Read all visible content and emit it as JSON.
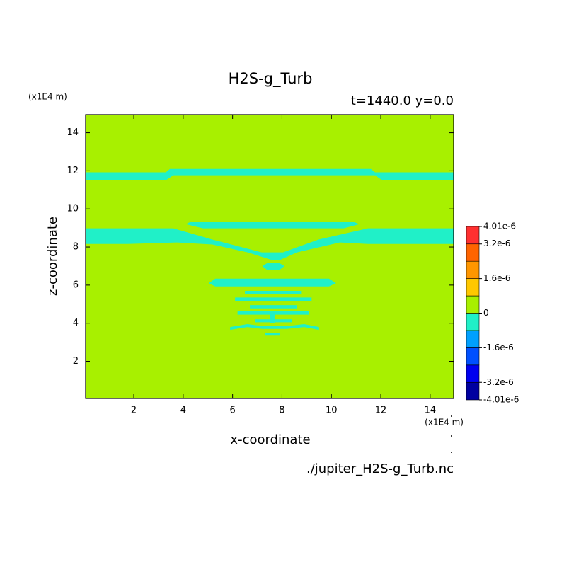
{
  "chart_data": {
    "type": "contour",
    "title": "H2S-g_Turb",
    "subtitle": "t=1440.0 y=0.0",
    "x_label": "x-coordinate",
    "y_label": "z-coordinate",
    "x_unit": "(x1E4 m)",
    "y_unit": "(x1E4 m)",
    "source": "./jupiter_H2S-g_Turb.nc",
    "xlim": [
      0.05,
      14.95
    ],
    "ylim": [
      0.05,
      14.95
    ],
    "xticks": [
      2,
      4,
      6,
      8,
      10,
      12,
      14
    ],
    "yticks": [
      2,
      4,
      6,
      8,
      10,
      12,
      14
    ],
    "colorbar": {
      "levels": [
        -4.01e-06,
        -3.2e-06,
        -2.4e-06,
        -1.6e-06,
        -8e-07,
        0,
        8e-07,
        1.6e-06,
        2.4e-06,
        3.2e-06,
        4.01e-06
      ],
      "colors": [
        "#0000a0",
        "#0000f0",
        "#0050ff",
        "#00a0ff",
        "#20f0c8",
        "#a8f000",
        "#ffc800",
        "#ff9600",
        "#ff6400",
        "#ff3030"
      ],
      "ticks": [
        {
          "value": 4.01e-06,
          "label": "4.01e-6"
        },
        {
          "value": 3.2e-06,
          "label": "3.2e-6"
        },
        {
          "value": 1.6e-06,
          "label": "1.6e-6"
        },
        0,
        {
          "value": -1.6e-06,
          "label": "-1.6e-6"
        },
        {
          "value": -3.2e-06,
          "label": "-3.2e-6"
        },
        {
          "value": -4.01e-06,
          "label": "-4.01e-6"
        }
      ]
    },
    "background_band": 5,
    "regions": [
      {
        "band": 4,
        "x": [
          0.05,
          3.3,
          3.46,
          11.6,
          11.77,
          14.95,
          14.95,
          12.05,
          11.77,
          3.6,
          3.3,
          0.05
        ],
        "z": [
          11.92,
          11.92,
          12.1,
          12.1,
          11.92,
          11.92,
          11.51,
          11.51,
          11.77,
          11.77,
          11.51,
          11.51
        ]
      },
      {
        "band": 4,
        "x": [
          4.1,
          4.3,
          10.9,
          11.14,
          10.5,
          4.8
        ],
        "z": [
          9.2,
          9.32,
          9.32,
          9.2,
          8.98,
          8.98
        ]
      },
      {
        "band": 4,
        "x": [
          0.05,
          3.6,
          5.18,
          7.18,
          8.04,
          9.48,
          11.48,
          14.95,
          14.95,
          11.48,
          10.34,
          8.61,
          7.9,
          7.61,
          6.61,
          5.18,
          3.74,
          1.74,
          0.05
        ],
        "z": [
          8.98,
          8.98,
          8.39,
          7.72,
          7.72,
          8.39,
          8.98,
          8.98,
          8.16,
          8.16,
          8.24,
          7.72,
          7.31,
          7.31,
          7.72,
          8.13,
          8.24,
          8.16,
          8.16
        ]
      },
      {
        "band": 4,
        "x": [
          7.2,
          7.4,
          7.9,
          8.1,
          7.9,
          7.4
        ],
        "z": [
          7.0,
          7.15,
          7.15,
          7.0,
          6.8,
          6.8
        ]
      },
      {
        "band": 4,
        "x": [
          5.3,
          9.9,
          10.19,
          9.9,
          5.3,
          5.03
        ],
        "z": [
          6.34,
          6.34,
          6.1,
          5.93,
          5.93,
          6.1
        ]
      },
      {
        "band": 4,
        "x": [
          6.5,
          8.8,
          8.8,
          6.5
        ],
        "z": [
          5.7,
          5.7,
          5.52,
          5.52
        ]
      },
      {
        "band": 4,
        "x": [
          6.1,
          9.2,
          9.2,
          6.1
        ],
        "z": [
          5.35,
          5.35,
          5.15,
          5.15
        ]
      },
      {
        "band": 4,
        "x": [
          6.7,
          8.6,
          8.6,
          6.7
        ],
        "z": [
          4.95,
          4.95,
          4.78,
          4.78
        ]
      },
      {
        "band": 4,
        "x": [
          6.2,
          9.1,
          9.1,
          6.2
        ],
        "z": [
          4.62,
          4.62,
          4.45,
          4.45
        ]
      },
      {
        "band": 4,
        "x": [
          7.5,
          7.7,
          7.7,
          7.5
        ],
        "z": [
          4.6,
          4.6,
          4.0,
          4.0
        ]
      },
      {
        "band": 4,
        "x": [
          6.9,
          8.4,
          8.4,
          6.9
        ],
        "z": [
          4.2,
          4.2,
          4.05,
          4.05
        ]
      },
      {
        "band": 4,
        "x": [
          5.9,
          6.6,
          7.2,
          8.2,
          8.9,
          9.5,
          9.5,
          8.9,
          8.2,
          7.2,
          6.6,
          5.9
        ],
        "z": [
          3.8,
          3.95,
          3.85,
          3.85,
          3.95,
          3.8,
          3.65,
          3.8,
          3.7,
          3.7,
          3.8,
          3.65
        ]
      },
      {
        "band": 4,
        "x": [
          7.3,
          7.9,
          7.9,
          7.3
        ],
        "z": [
          3.5,
          3.5,
          3.35,
          3.35
        ]
      }
    ]
  }
}
